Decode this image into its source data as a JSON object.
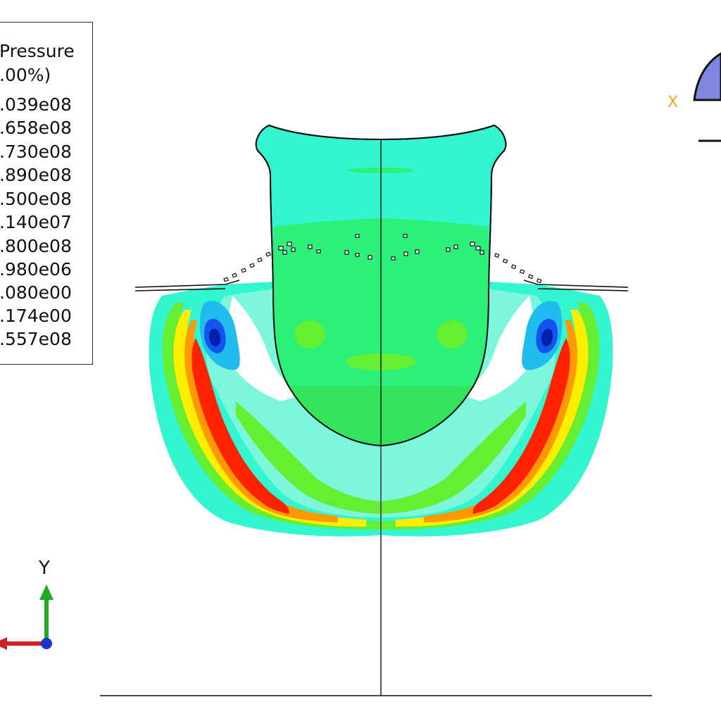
{
  "legend": {
    "title_line1": "Pressure",
    "title_line2": ".00%)",
    "values": [
      ".039e08",
      ".658e08",
      ".730e08",
      ".890e08",
      ".500e08",
      ".140e07",
      ".800e08",
      ".980e06",
      ".080e00",
      ".174e00",
      ".557e08"
    ]
  },
  "triad": {
    "y_label": "Y",
    "x_colour": "#cc2222",
    "y_colour": "#22aa22",
    "z_colour": "#1a33cc"
  },
  "view_cube": {
    "x_label": "X",
    "x_label_colour": "#f0a020",
    "face_colour": "#7f86e0"
  },
  "contour_colours": {
    "cyan": "#33f5d0",
    "pale_cyan": "#7cf7dc",
    "green": "#2cf07a",
    "lime": "#66ee33",
    "yellow": "#ffee00",
    "orange": "#ff9900",
    "red": "#ff2200",
    "light_blue": "#22bbee",
    "blue": "#1155ee",
    "dark_blue": "#0022aa"
  }
}
